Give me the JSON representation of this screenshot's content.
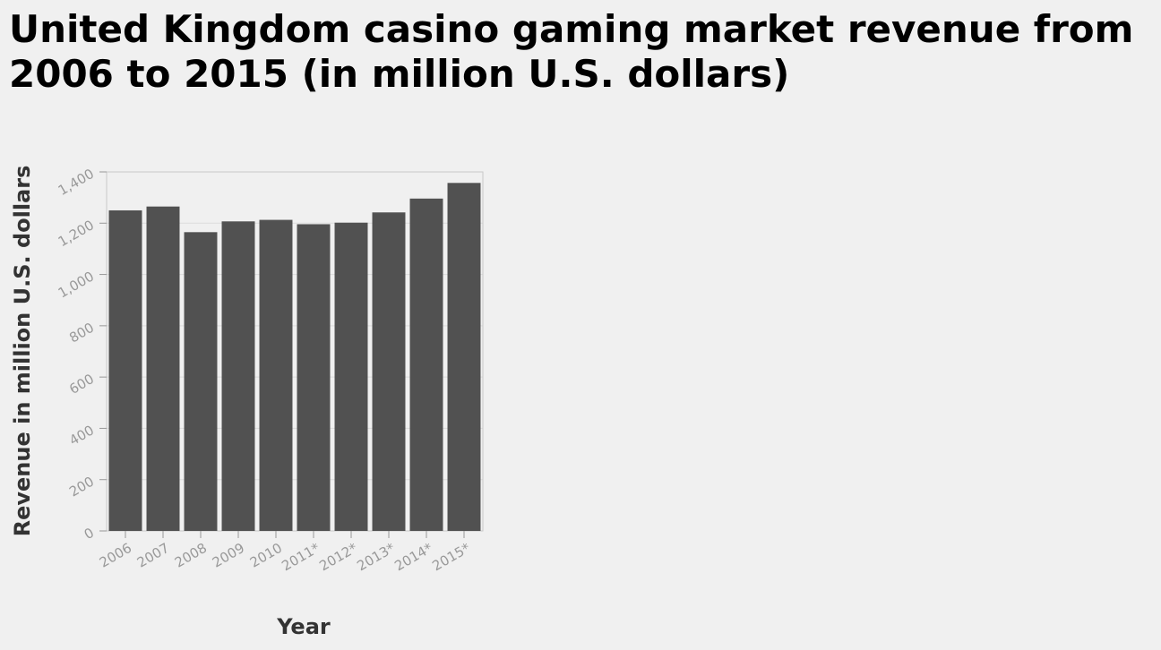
{
  "chart_data": {
    "type": "bar",
    "title": "United Kingdom casino gaming market revenue from 2006 to 2015 (in million U.S. dollars)",
    "xlabel": "Year",
    "ylabel": "Revenue in million U.S. dollars",
    "categories": [
      "2006",
      "2007",
      "2008",
      "2009",
      "2010",
      "2011*",
      "2012*",
      "2013*",
      "2014*",
      "2015*"
    ],
    "values": [
      1250,
      1265,
      1165,
      1207,
      1213,
      1196,
      1202,
      1242,
      1296,
      1357
    ],
    "ylim": [
      0,
      1400
    ],
    "yticks": [
      0,
      200,
      400,
      600,
      800,
      1000,
      1200,
      1400
    ],
    "ytick_labels": [
      "0",
      "200",
      "400",
      "600",
      "800",
      "1,000",
      "1,200",
      "1,400"
    ],
    "grid": true,
    "colors": {
      "bar": "#515151",
      "grid": "#dcdcdc",
      "frame": "#c8c8c8",
      "tick": "#999999"
    }
  }
}
